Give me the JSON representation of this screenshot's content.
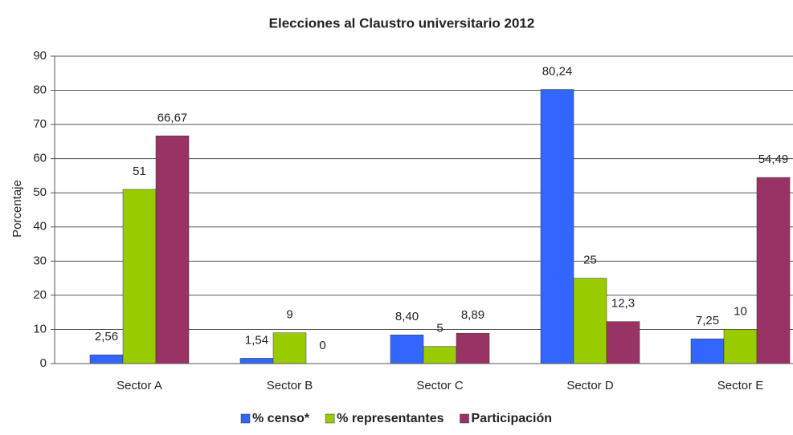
{
  "chart_data": {
    "type": "bar",
    "title": "Elecciones al Claustro universitario 2012",
    "y_label": "Porcentaje",
    "categories": [
      "Sector A",
      "Sector B",
      "Sector C",
      "Sector D",
      "Sector E"
    ],
    "series": [
      {
        "name": "% censo*",
        "color": "#3366ff",
        "values": [
          2.56,
          1.54,
          8.4,
          80.24,
          7.25
        ],
        "value_labels": [
          "2,56",
          "1,54",
          "8,40",
          "80,24",
          "7,25"
        ]
      },
      {
        "name": "% representantes",
        "color": "#99cc00",
        "values": [
          51,
          9,
          5,
          25,
          10
        ],
        "value_labels": [
          "51",
          "9",
          "5",
          "25",
          "10"
        ]
      },
      {
        "name": "Participación",
        "color": "#993366",
        "values": [
          66.67,
          0,
          8.89,
          12.3,
          54.49
        ],
        "value_labels": [
          "66,67",
          "0",
          "8,89",
          "12,3",
          "54,49"
        ]
      }
    ],
    "ylim": [
      0,
      90
    ],
    "yticks": [
      0,
      10,
      20,
      30,
      40,
      50,
      60,
      70,
      80,
      90
    ],
    "grid": true,
    "legend": "bottom"
  }
}
